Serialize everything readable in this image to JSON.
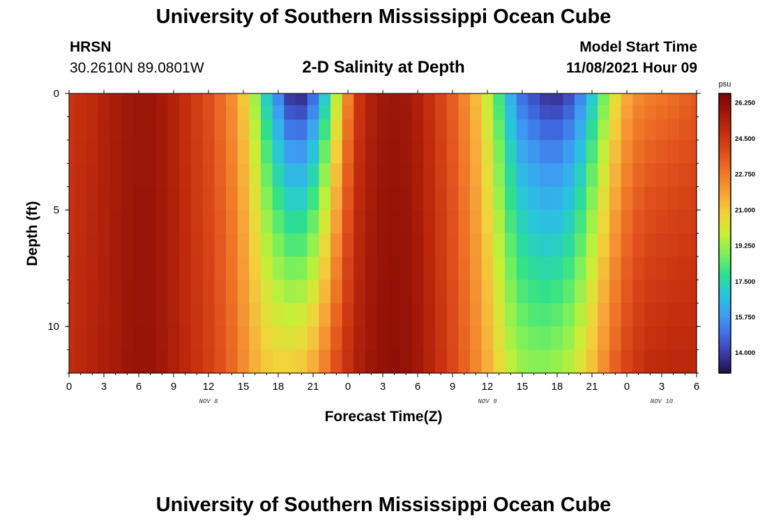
{
  "header": {
    "title": "University of Southern Mississippi Ocean Cube",
    "station": "HRSN",
    "coords": "30.2610N  89.0801W",
    "subtitle": "2-D Salinity at Depth",
    "model_label": "Model Start Time",
    "model_time": "11/08/2021 Hour 09"
  },
  "footer": {
    "title": "University of Southern Mississippi Ocean Cube"
  },
  "chart_data": {
    "type": "heatmap",
    "xlabel": "Forecast Time(Z)",
    "ylabel": "Depth (ft)",
    "x_tick_labels": [
      "0",
      "3",
      "6",
      "9",
      "12",
      "15",
      "18",
      "21",
      "0",
      "3",
      "6",
      "9",
      "12",
      "15",
      "18",
      "21",
      "0",
      "3",
      "6"
    ],
    "x_range_hours": [
      0,
      54
    ],
    "date_labels": [
      {
        "text": "NOV 8",
        "hour": 12
      },
      {
        "text": "NOV 9",
        "hour": 36
      },
      {
        "text": "NOV 10",
        "hour": 51
      }
    ],
    "y_ticks": [
      0,
      5,
      10
    ],
    "y_range_ft": [
      0,
      12
    ],
    "depth_levels_ft": [
      0.25,
      0.75,
      1.5,
      2.5,
      3.5,
      4.5,
      5.5,
      6.5,
      7.5,
      8.5,
      9.5,
      10.5,
      11.5
    ],
    "hours": [
      0,
      1,
      2,
      3,
      4,
      5,
      6,
      7,
      8,
      9,
      10,
      11,
      12,
      13,
      14,
      15,
      16,
      17,
      18,
      19,
      20,
      21,
      22,
      23,
      24,
      25,
      26,
      27,
      28,
      29,
      30,
      31,
      32,
      33,
      34,
      35,
      36,
      37,
      38,
      39,
      40,
      41,
      42,
      43,
      44,
      45,
      46,
      47,
      48,
      49,
      50,
      51,
      52,
      53,
      54
    ],
    "profiles": {
      "surface": [
        24.6,
        24.8,
        25.0,
        25.3,
        25.6,
        25.8,
        25.9,
        25.9,
        25.7,
        25.3,
        24.8,
        24.3,
        23.8,
        23.1,
        22.3,
        21.0,
        19.2,
        17.0,
        15.2,
        13.6,
        13.4,
        14.6,
        16.8,
        19.5,
        22.5,
        24.6,
        25.4,
        25.8,
        25.9,
        25.8,
        25.4,
        24.8,
        24.1,
        23.4,
        22.5,
        21.3,
        19.8,
        18.0,
        16.2,
        14.8,
        14.2,
        13.7,
        13.6,
        14.1,
        15.2,
        16.8,
        18.6,
        20.3,
        21.6,
        22.3,
        22.6,
        22.8,
        23.0,
        23.2,
        23.4
      ],
      "bottom": [
        24.9,
        25.1,
        25.3,
        25.5,
        25.7,
        25.9,
        26.0,
        26.0,
        25.8,
        25.5,
        25.1,
        24.7,
        24.3,
        23.8,
        23.2,
        22.4,
        21.6,
        21.0,
        20.8,
        20.8,
        21.0,
        21.6,
        22.6,
        23.8,
        24.8,
        25.5,
        25.9,
        26.1,
        26.2,
        26.1,
        25.8,
        25.3,
        24.7,
        24.0,
        23.3,
        22.5,
        21.6,
        20.6,
        19.7,
        19.2,
        19.0,
        19.0,
        19.2,
        19.6,
        20.3,
        21.2,
        22.3,
        23.3,
        24.1,
        24.6,
        24.9,
        25.0,
        25.1,
        25.1,
        25.1
      ]
    },
    "colorbar": {
      "unit": "psu",
      "min": 13.0,
      "max": 26.7,
      "ticks": [
        "26.250",
        "24.500",
        "22.750",
        "21.000",
        "19.250",
        "17.500",
        "15.750",
        "14.000"
      ],
      "colors": [
        "#1a0f3d",
        "#3b3aa6",
        "#3f6fe6",
        "#3ea0f2",
        "#28c6dc",
        "#2ee08c",
        "#7cf05a",
        "#c7ef36",
        "#f2d23a",
        "#f7a53a",
        "#f07a28",
        "#e04f1c",
        "#c8300f",
        "#a41a08",
        "#7a0603"
      ]
    }
  }
}
